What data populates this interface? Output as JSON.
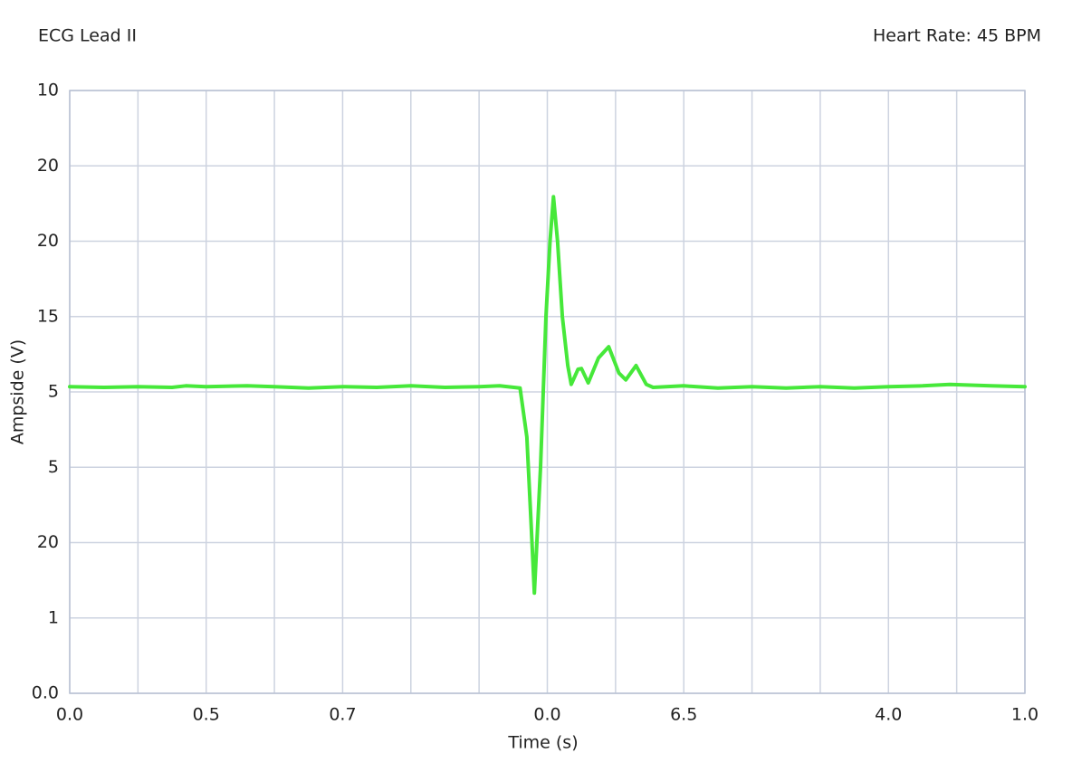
{
  "chart_data": {
    "type": "line",
    "title": "ECG Lead II",
    "subtitle": "Heart Rate: 45 BPM",
    "x_label": "Time (s)",
    "y_label": "Ampside (V)",
    "xlim": [
      0,
      14
    ],
    "xticks": [
      {
        "value": 0,
        "label": "0.0"
      },
      {
        "value": 2,
        "label": "0.5"
      },
      {
        "value": 4,
        "label": "0.7"
      },
      {
        "value": 7,
        "label": "0.0"
      },
      {
        "value": 9,
        "label": "6.5"
      },
      {
        "value": 12,
        "label": "4.0"
      },
      {
        "value": 14,
        "label": "1.0"
      }
    ],
    "xminor": [
      1,
      3,
      5,
      6,
      8,
      10,
      11,
      13
    ],
    "ylim": [
      0,
      8
    ],
    "yticks": [
      {
        "value": 0,
        "label": "0.0"
      },
      1,
      {
        "value": 2,
        "label": "20"
      },
      {
        "value": 3,
        "label": "5"
      },
      {
        "value": 4,
        "label": "5"
      },
      {
        "value": 5,
        "label": "15"
      },
      {
        "value": 6,
        "label": "20"
      },
      {
        "value": 7,
        "label": "20"
      },
      {
        "value": 8,
        "label": "10"
      }
    ],
    "grid": true,
    "series": [
      {
        "name": "ECG Lead II",
        "color": "#46e83a",
        "x": [
          0,
          0.5,
          1,
          1.5,
          1.7,
          2,
          2.6,
          3,
          3.5,
          4,
          4.5,
          5,
          5.5,
          6,
          6.3,
          6.6,
          6.7,
          6.76,
          6.81,
          6.9,
          6.98,
          7.04,
          7.09,
          7.15,
          7.22,
          7.3,
          7.35,
          7.45,
          7.5,
          7.6,
          7.75,
          7.9,
          8.05,
          8.15,
          8.3,
          8.45,
          8.55,
          9,
          9.5,
          10,
          10.5,
          11,
          11.5,
          12,
          12.5,
          12.9,
          13.5,
          14
        ],
        "values": [
          4.07,
          4.06,
          4.07,
          4.06,
          4.08,
          4.07,
          4.08,
          4.07,
          4.05,
          4.07,
          4.06,
          4.08,
          4.06,
          4.07,
          4.08,
          4.05,
          3.4,
          2.3,
          1.33,
          3.0,
          5.0,
          6.0,
          6.59,
          6.0,
          5.0,
          4.35,
          4.1,
          4.3,
          4.31,
          4.12,
          4.45,
          4.6,
          4.25,
          4.16,
          4.35,
          4.1,
          4.06,
          4.08,
          4.05,
          4.07,
          4.05,
          4.07,
          4.05,
          4.07,
          4.08,
          4.1,
          4.08,
          4.07
        ]
      }
    ]
  }
}
